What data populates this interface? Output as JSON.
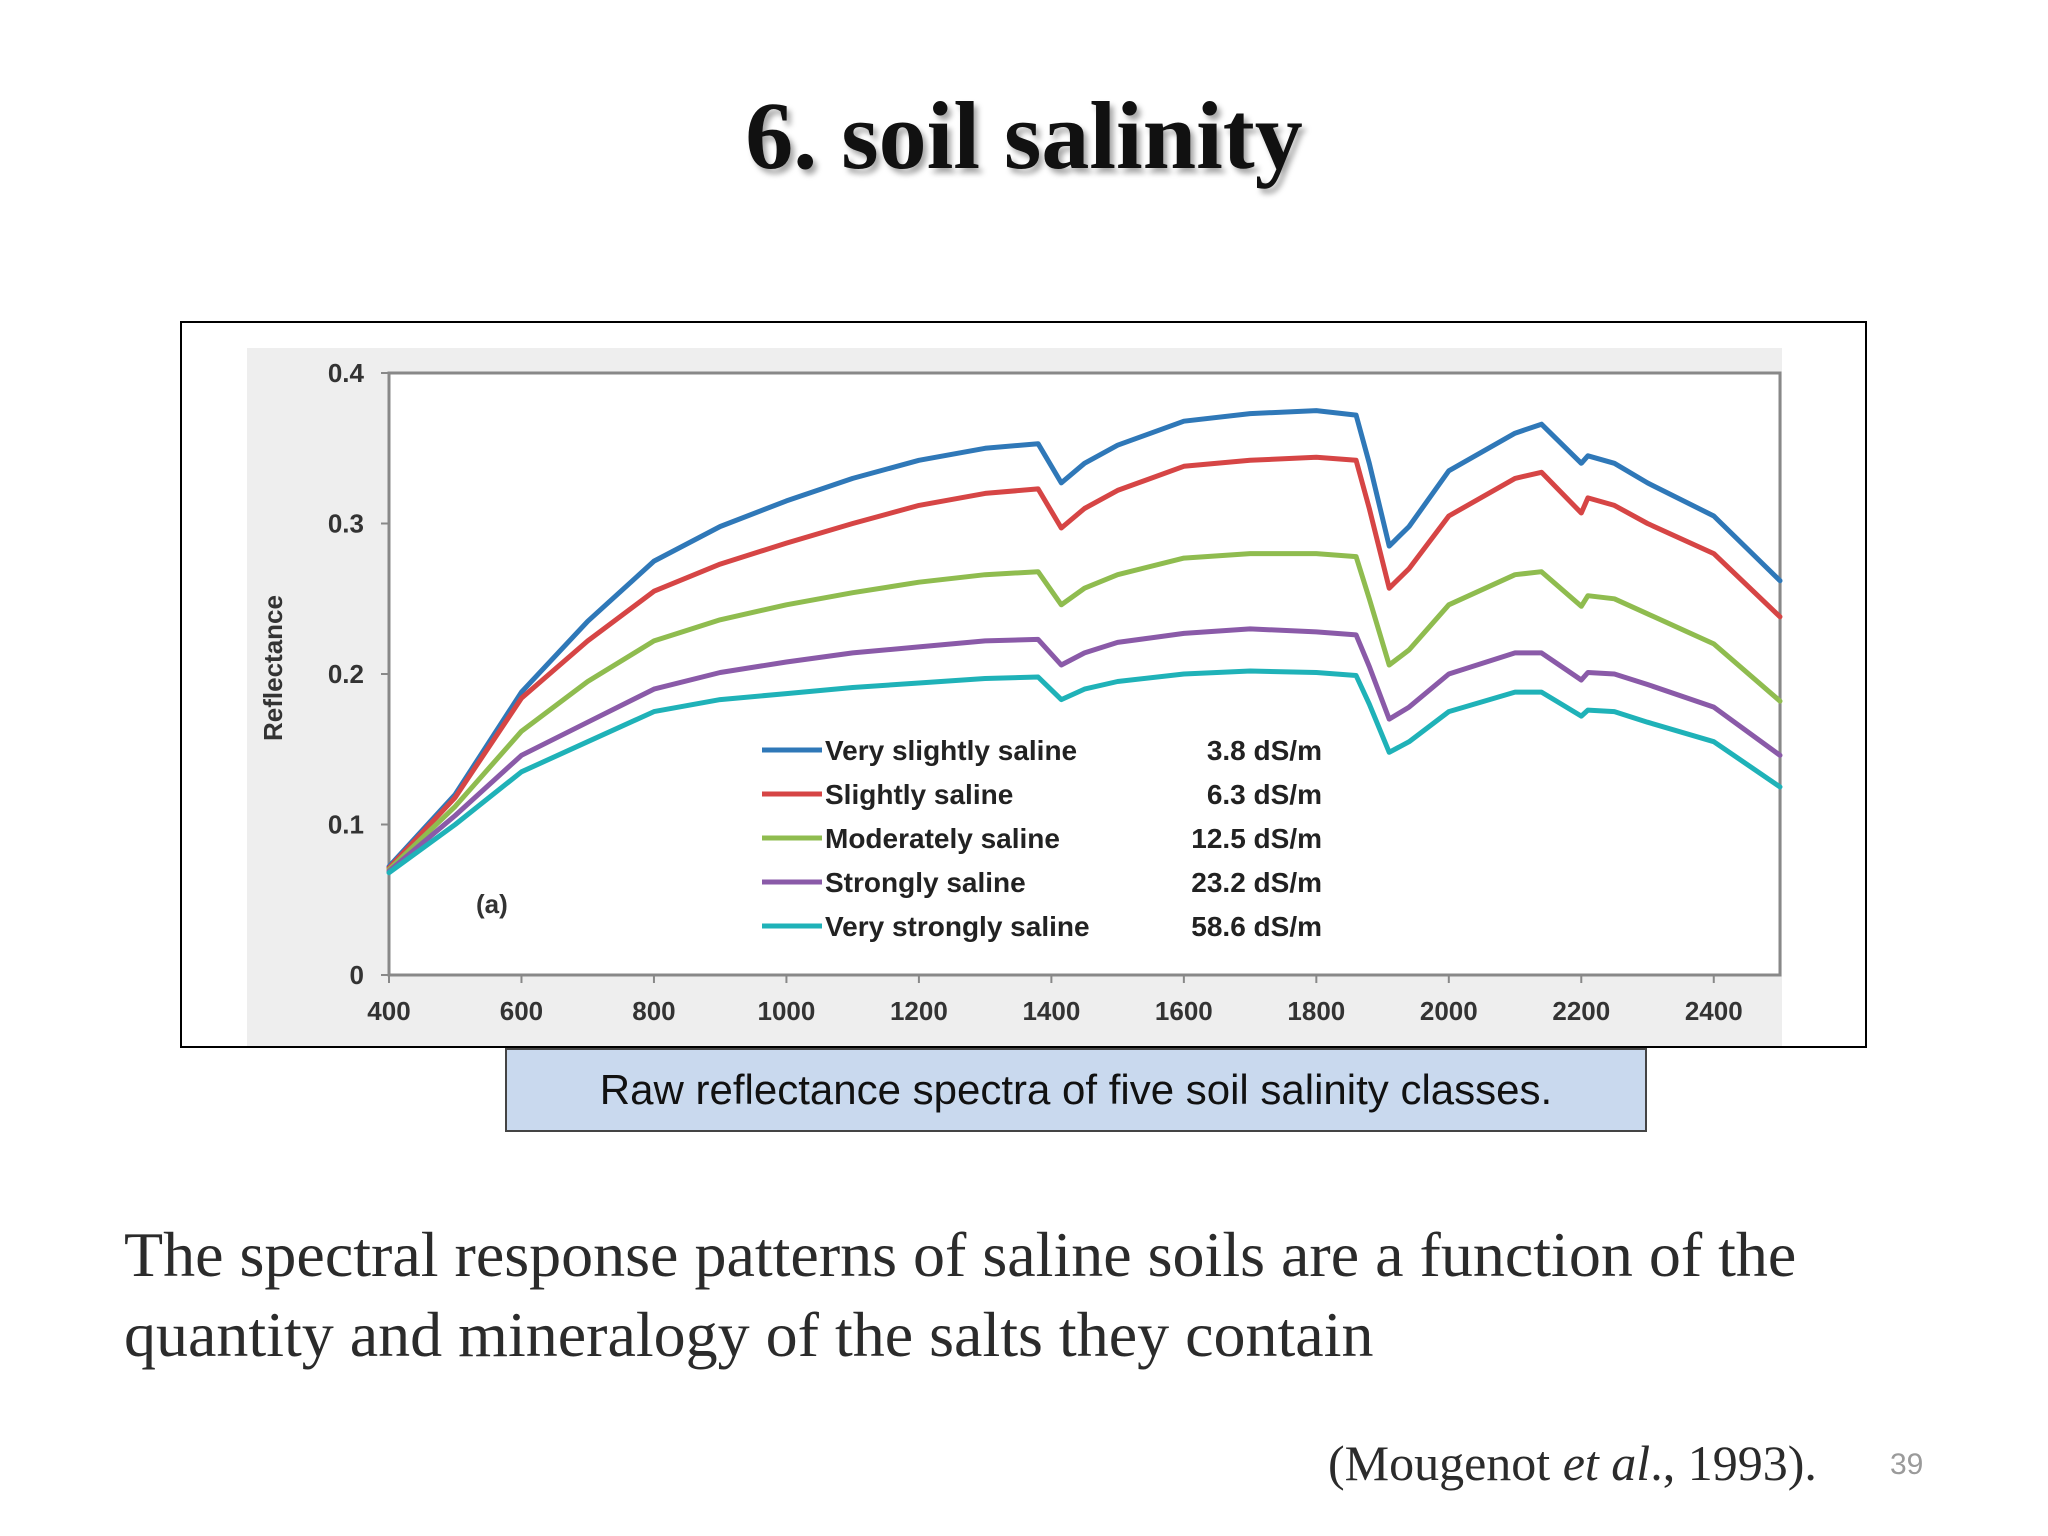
{
  "slide": {
    "title": "6. soil salinity",
    "caption": "Raw reflectance spectra of five soil salinity classes.",
    "body": "The spectral response patterns of saline soils are a function of the quantity and mineralogy of the salts they contain",
    "citation_pre": "(Mougenot ",
    "citation_em": "et al",
    "citation_post": "., 1993).",
    "page_number": "39"
  },
  "chart_data": {
    "type": "line",
    "title": "",
    "xlabel": "",
    "ylabel": "Reflectance",
    "panel_label": "(a)",
    "xlim": [
      400,
      2500
    ],
    "ylim": [
      0,
      0.4
    ],
    "xticks": [
      400,
      600,
      800,
      1000,
      1200,
      1400,
      1600,
      1800,
      2000,
      2200,
      2400
    ],
    "yticks": [
      0,
      0.1,
      0.2,
      0.3,
      0.4
    ],
    "ytick_labels": [
      "0",
      "0.1",
      "0.2",
      "0.3",
      "0.4"
    ],
    "legend_position": "center",
    "x": [
      400,
      500,
      600,
      700,
      800,
      900,
      1000,
      1100,
      1200,
      1300,
      1380,
      1415,
      1450,
      1500,
      1600,
      1700,
      1800,
      1860,
      1880,
      1910,
      1940,
      2000,
      2100,
      2140,
      2200,
      2210,
      2250,
      2300,
      2400,
      2500
    ],
    "series": [
      {
        "name": "Very slightly saline",
        "value_label": "3.8 dS/m",
        "color": "#2f78b8",
        "values": [
          0.072,
          0.12,
          0.188,
          0.235,
          0.275,
          0.298,
          0.315,
          0.33,
          0.342,
          0.35,
          0.353,
          0.327,
          0.34,
          0.352,
          0.368,
          0.373,
          0.375,
          0.372,
          0.34,
          0.285,
          0.298,
          0.335,
          0.36,
          0.366,
          0.34,
          0.345,
          0.34,
          0.327,
          0.305,
          0.262
        ]
      },
      {
        "name": "Slightly saline",
        "value_label": "6.3 dS/m",
        "color": "#d64545",
        "values": [
          0.071,
          0.118,
          0.184,
          0.222,
          0.255,
          0.273,
          0.287,
          0.3,
          0.312,
          0.32,
          0.323,
          0.297,
          0.31,
          0.322,
          0.338,
          0.342,
          0.344,
          0.342,
          0.31,
          0.257,
          0.27,
          0.305,
          0.33,
          0.334,
          0.307,
          0.317,
          0.312,
          0.3,
          0.28,
          0.238
        ]
      },
      {
        "name": "Moderately saline",
        "value_label": "12.5 dS/m",
        "color": "#8fbc4f",
        "values": [
          0.07,
          0.112,
          0.162,
          0.195,
          0.222,
          0.236,
          0.246,
          0.254,
          0.261,
          0.266,
          0.268,
          0.246,
          0.257,
          0.266,
          0.277,
          0.28,
          0.28,
          0.278,
          0.25,
          0.206,
          0.216,
          0.246,
          0.266,
          0.268,
          0.245,
          0.252,
          0.25,
          0.24,
          0.22,
          0.182
        ]
      },
      {
        "name": "Strongly saline",
        "value_label": "23.2 dS/m",
        "color": "#8a5aa8",
        "values": [
          0.069,
          0.106,
          0.146,
          0.168,
          0.19,
          0.201,
          0.208,
          0.214,
          0.218,
          0.222,
          0.223,
          0.206,
          0.214,
          0.221,
          0.227,
          0.23,
          0.228,
          0.226,
          0.205,
          0.17,
          0.178,
          0.2,
          0.214,
          0.214,
          0.196,
          0.201,
          0.2,
          0.193,
          0.178,
          0.146
        ]
      },
      {
        "name": "Very strongly saline",
        "value_label": "58.6 dS/m",
        "color": "#1fb2b8",
        "values": [
          0.068,
          0.1,
          0.135,
          0.155,
          0.175,
          0.183,
          0.187,
          0.191,
          0.194,
          0.197,
          0.198,
          0.183,
          0.19,
          0.195,
          0.2,
          0.202,
          0.201,
          0.199,
          0.18,
          0.148,
          0.155,
          0.175,
          0.188,
          0.188,
          0.172,
          0.176,
          0.175,
          0.168,
          0.155,
          0.125
        ]
      }
    ]
  }
}
